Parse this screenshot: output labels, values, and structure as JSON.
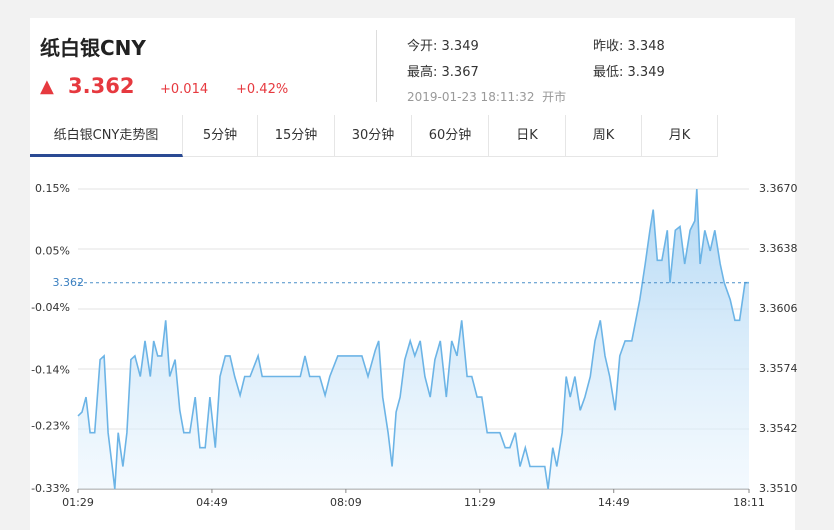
{
  "header": {
    "name": "纸白银CNY",
    "arrow": "▲",
    "price": 3.362,
    "change": "+0.014",
    "change_pct": "+0.42%",
    "quotes": [
      {
        "label": "今开:",
        "value": 3.349
      },
      {
        "label": "昨收:",
        "value": 3.348
      },
      {
        "label": "最高:",
        "value": 3.367
      },
      {
        "label": "最低:",
        "value": 3.349
      }
    ],
    "timestamp": "2019-01-23 18:11:32",
    "status": "开市"
  },
  "tabs": {
    "items": [
      "纸白银CNY走势图",
      "5分钟",
      "15分钟",
      "30分钟",
      "60分钟",
      "日K",
      "周K",
      "月K"
    ],
    "active": 0
  },
  "chart_data": {
    "type": "area",
    "xlim": [
      0,
      1002
    ],
    "xticks": [
      {
        "value": 0,
        "label": "01:29"
      },
      {
        "value": 200,
        "label": "04:49"
      },
      {
        "value": 400,
        "label": "08:09"
      },
      {
        "value": 600,
        "label": "11:29"
      },
      {
        "value": 800,
        "label": "14:49"
      },
      {
        "value": 1002,
        "label": "18:11"
      }
    ],
    "ylim": [
      3.351,
      3.367
    ],
    "yticks": [
      {
        "value": 3.367,
        "label": "3.3670"
      },
      3.3638,
      3.3606,
      3.3574,
      3.3542,
      {
        "value": 3.351,
        "label": "3.3510"
      }
    ],
    "y2lim": [
      -0.33,
      0.15
    ],
    "y2ticks": [
      {
        "value": 0.15,
        "label": "0.15%"
      },
      {
        "value": 0.05,
        "label": "0.05%"
      },
      {
        "value": -0.04,
        "label": "-0.04%"
      },
      {
        "value": -0.14,
        "label": "-0.14%"
      },
      {
        "value": -0.23,
        "label": "-0.23%"
      },
      {
        "value": -0.33,
        "label": "-0.33%"
      }
    ],
    "grid": true,
    "last_price": 3.362,
    "series": [
      {
        "color": "#6cb4e6",
        "x": [
          0,
          6,
          12,
          18,
          25,
          33,
          39,
          45,
          51,
          55,
          60,
          67,
          73,
          79,
          85,
          93,
          100,
          108,
          113,
          119,
          125,
          131,
          137,
          145,
          152,
          158,
          167,
          175,
          182,
          190,
          197,
          205,
          212,
          220,
          227,
          234,
          242,
          249,
          257,
          269,
          275,
          287,
          302,
          317,
          332,
          339,
          346,
          361,
          369,
          376,
          388,
          399,
          414,
          424,
          433,
          444,
          449,
          455,
          463,
          469,
          475,
          481,
          488,
          496,
          503,
          511,
          518,
          526,
          533,
          541,
          550,
          558,
          566,
          573,
          581,
          588,
          596,
          603,
          611,
          618,
          630,
          638,
          645,
          653,
          660,
          668,
          675,
          682,
          690,
          697,
          702,
          709,
          715,
          723,
          729,
          735,
          742,
          750,
          757,
          765,
          772,
          780,
          787,
          794,
          802,
          809,
          817,
          827,
          833,
          839,
          847,
          854,
          859,
          865,
          872,
          880,
          884,
          892,
          899,
          906,
          914,
          921,
          924,
          929,
          936,
          944,
          951,
          959,
          965,
          974,
          981,
          988,
          996,
          1002
        ],
        "values": [
          3.3549,
          3.3551,
          3.3559,
          3.354,
          3.354,
          3.3579,
          3.3581,
          3.354,
          3.3522,
          3.351,
          3.354,
          3.3522,
          3.354,
          3.3579,
          3.3581,
          3.357,
          3.3589,
          3.357,
          3.3589,
          3.3581,
          3.3581,
          3.36,
          3.357,
          3.3579,
          3.3552,
          3.354,
          3.354,
          3.3559,
          3.3532,
          3.3532,
          3.3559,
          3.3532,
          3.357,
          3.3581,
          3.3581,
          3.357,
          3.356,
          3.357,
          3.357,
          3.3581,
          3.357,
          3.357,
          3.357,
          3.357,
          3.357,
          3.3581,
          3.357,
          3.357,
          3.356,
          3.357,
          3.3581,
          3.3581,
          3.3581,
          3.3581,
          3.357,
          3.3584,
          3.3589,
          3.3559,
          3.354,
          3.3522,
          3.3551,
          3.3559,
          3.3579,
          3.3589,
          3.3581,
          3.3589,
          3.357,
          3.3559,
          3.3579,
          3.3589,
          3.3559,
          3.3589,
          3.3581,
          3.36,
          3.357,
          3.357,
          3.3559,
          3.3559,
          3.354,
          3.354,
          3.354,
          3.3532,
          3.3532,
          3.354,
          3.3522,
          3.3532,
          3.3522,
          3.3522,
          3.3522,
          3.3522,
          3.351,
          3.3532,
          3.3522,
          3.354,
          3.357,
          3.3559,
          3.357,
          3.3552,
          3.3559,
          3.357,
          3.3589,
          3.36,
          3.3581,
          3.357,
          3.3552,
          3.3581,
          3.3589,
          3.3589,
          3.36,
          3.3611,
          3.363,
          3.3648,
          3.3659,
          3.3632,
          3.3632,
          3.3648,
          3.362,
          3.3648,
          3.365,
          3.363,
          3.3648,
          3.3653,
          3.367,
          3.363,
          3.3648,
          3.3637,
          3.3648,
          3.363,
          3.362,
          3.3611,
          3.36,
          3.36,
          3.362,
          3.362
        ]
      }
    ]
  }
}
